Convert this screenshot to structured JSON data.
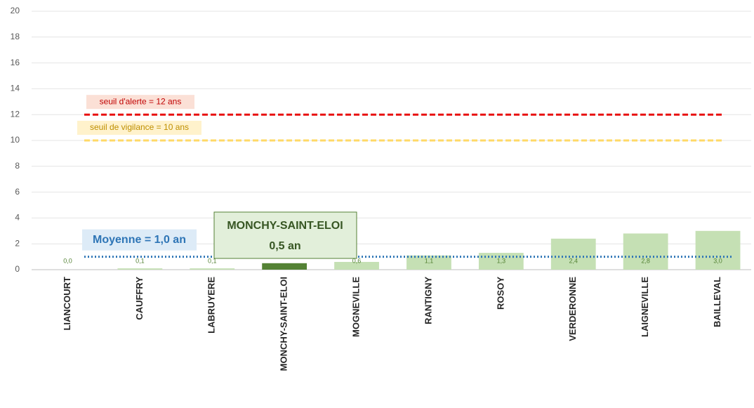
{
  "chart_data": {
    "type": "bar",
    "categories": [
      "LIANCOURT",
      "CAUFFRY",
      "LABRUYERE",
      "MONCHY-SAINT-ELOI",
      "MOGNEVILLE",
      "RANTIGNY",
      "ROSOY",
      "VERDERONNE",
      "LAIGNEVILLE",
      "BAILLEVAL"
    ],
    "values": [
      0.0,
      0.1,
      0.1,
      0.5,
      0.6,
      1.1,
      1.3,
      2.4,
      2.8,
      3.0
    ],
    "value_labels": [
      "0,0",
      "0,1",
      "0,1",
      null,
      "0,6",
      "1,1",
      "1,3",
      "2,4",
      "2,8",
      "3,0"
    ],
    "color": "#c5e0b4",
    "highlight": {
      "category": "MONCHY-SAINT-ELOI",
      "value_label": "0,5 an",
      "color": "#548235"
    },
    "ylim": [
      0,
      20
    ],
    "yticks": [
      0,
      2,
      4,
      6,
      8,
      10,
      12,
      14,
      16,
      18,
      20
    ],
    "grid": true,
    "reference_lines": [
      {
        "value": 12,
        "label": "seuil d'alerte = 12 ans",
        "color": "#e81010",
        "style": "dashed"
      },
      {
        "value": 10,
        "label": "seuil de vigilance = 10 ans",
        "color": "#ffd966",
        "style": "dashed"
      },
      {
        "value": 1.0,
        "label": "Moyenne = 1,0 an",
        "color": "#2e75b6",
        "style": "dotted"
      }
    ]
  }
}
